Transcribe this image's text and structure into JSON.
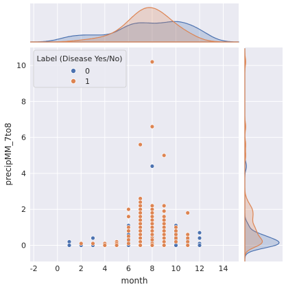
{
  "chart_data": {
    "type": "scatter",
    "title": "",
    "xlabel": "month",
    "ylabel": "precipMM_7to8",
    "xlim": [
      -2.3,
      15.3
    ],
    "ylim": [
      -0.9,
      11.0
    ],
    "xticks": [
      "-2",
      "0",
      "2",
      "4",
      "6",
      "8",
      "10",
      "12",
      "14"
    ],
    "yticks": [
      "0",
      "2",
      "4",
      "6",
      "8",
      "10"
    ],
    "grid": true,
    "legend": {
      "title": "Label (Disease Yes/No)",
      "placement": "top-left",
      "entries": [
        {
          "label": "0",
          "color": "#4c72b0"
        },
        {
          "label": "1",
          "color": "#dd8452"
        }
      ]
    },
    "marginals": {
      "top": "kde of month by label",
      "right": "kde of precipMM_7to8 by label"
    },
    "series": [
      {
        "label": "0",
        "color": "#4c72b0",
        "points": [
          [
            1,
            0.2
          ],
          [
            1,
            0.0
          ],
          [
            2,
            0.0
          ],
          [
            3,
            0.4
          ],
          [
            3,
            0.0
          ],
          [
            4,
            0.0
          ],
          [
            5,
            0.0
          ],
          [
            6,
            1.1
          ],
          [
            6,
            0.6
          ],
          [
            6,
            0.4
          ],
          [
            6,
            0.2
          ],
          [
            6,
            0.0
          ],
          [
            7,
            0.6
          ],
          [
            7,
            0.4
          ],
          [
            7,
            0.2
          ],
          [
            7,
            0.0
          ],
          [
            8,
            4.4
          ],
          [
            8,
            0.5
          ],
          [
            8,
            0.2
          ],
          [
            8,
            0.0
          ],
          [
            9,
            0.4
          ],
          [
            9,
            0.2
          ],
          [
            9,
            0.0
          ],
          [
            10,
            1.1
          ],
          [
            10,
            0.7
          ],
          [
            10,
            0.5
          ],
          [
            10,
            0.3
          ],
          [
            10,
            0.1
          ],
          [
            10,
            0.0
          ],
          [
            11,
            0.3
          ],
          [
            11,
            0.1
          ],
          [
            11,
            0.0
          ],
          [
            12,
            0.7
          ],
          [
            12,
            0.4
          ],
          [
            12,
            0.1
          ],
          [
            12,
            0.0
          ]
        ]
      },
      {
        "label": "1",
        "color": "#dd8452",
        "points": [
          [
            2,
            0.1
          ],
          [
            3,
            0.1
          ],
          [
            4,
            0.1
          ],
          [
            4,
            0.0
          ],
          [
            5,
            0.2
          ],
          [
            5,
            0.1
          ],
          [
            5,
            0.0
          ],
          [
            6,
            2.0
          ],
          [
            6,
            1.6
          ],
          [
            6,
            1.0
          ],
          [
            6,
            0.8
          ],
          [
            6,
            0.5
          ],
          [
            6,
            0.3
          ],
          [
            6,
            0.1
          ],
          [
            7,
            5.6
          ],
          [
            7,
            2.6
          ],
          [
            7,
            2.4
          ],
          [
            7,
            2.2
          ],
          [
            7,
            2.0
          ],
          [
            7,
            1.8
          ],
          [
            7,
            1.6
          ],
          [
            7,
            1.4
          ],
          [
            7,
            1.2
          ],
          [
            7,
            1.0
          ],
          [
            7,
            0.8
          ],
          [
            7,
            0.6
          ],
          [
            7,
            0.4
          ],
          [
            7,
            0.2
          ],
          [
            7,
            0.0
          ],
          [
            8,
            10.2
          ],
          [
            8,
            6.6
          ],
          [
            8,
            2.2
          ],
          [
            8,
            2.0
          ],
          [
            8,
            1.8
          ],
          [
            8,
            1.6
          ],
          [
            8,
            1.4
          ],
          [
            8,
            1.2
          ],
          [
            8,
            1.0
          ],
          [
            8,
            0.8
          ],
          [
            8,
            0.6
          ],
          [
            8,
            0.4
          ],
          [
            8,
            0.3
          ],
          [
            8,
            0.1
          ],
          [
            8,
            0.0
          ],
          [
            9,
            5.0
          ],
          [
            9,
            2.2
          ],
          [
            9,
            1.9
          ],
          [
            9,
            1.6
          ],
          [
            9,
            1.4
          ],
          [
            9,
            1.2
          ],
          [
            9,
            1.0
          ],
          [
            9,
            0.8
          ],
          [
            9,
            0.6
          ],
          [
            9,
            0.4
          ],
          [
            9,
            0.2
          ],
          [
            9,
            0.0
          ],
          [
            10,
            1.0
          ],
          [
            10,
            0.8
          ],
          [
            10,
            0.6
          ],
          [
            10,
            0.4
          ],
          [
            10,
            0.2
          ],
          [
            11,
            1.8
          ],
          [
            11,
            0.6
          ],
          [
            11,
            0.4
          ],
          [
            11,
            0.2
          ],
          [
            11,
            0.0
          ]
        ]
      }
    ]
  }
}
